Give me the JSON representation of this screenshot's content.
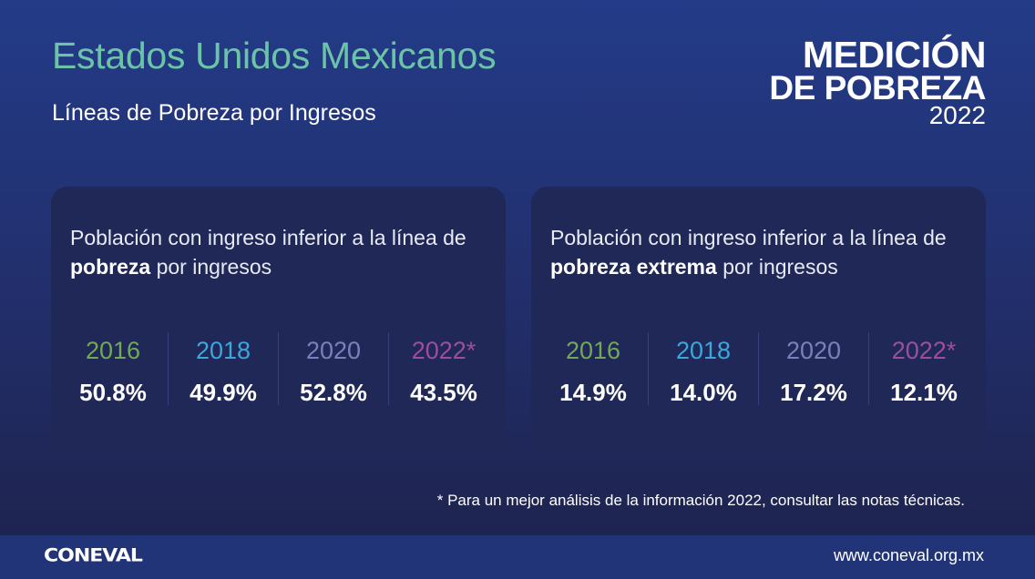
{
  "header": {
    "title": "Estados Unidos Mexicanos",
    "subtitle": "Líneas de Pobreza por Ingresos"
  },
  "logo": {
    "line1": "MEDICIÓN",
    "line2": "DE POBREZA",
    "line3": "2022"
  },
  "colors": {
    "2016": "#71a85a",
    "2018": "#3ba7dd",
    "2020": "#7b80bd",
    "2022": "#9c4ea0",
    "title": "#6cc4a8"
  },
  "cards": [
    {
      "desc_pre": "Población con ingreso inferior a la línea de ",
      "desc_bold": "pobreza",
      "desc_post": " por ingresos",
      "stats": [
        {
          "year": "2016",
          "value": "50.8%"
        },
        {
          "year": "2018",
          "value": "49.9%"
        },
        {
          "year": "2020",
          "value": "52.8%"
        },
        {
          "year": "2022*",
          "value": "43.5%"
        }
      ]
    },
    {
      "desc_pre": "Población con ingreso inferior a la línea de ",
      "desc_bold": "pobreza extrema",
      "desc_post": " por ingresos",
      "stats": [
        {
          "year": "2016",
          "value": "14.9%"
        },
        {
          "year": "2018",
          "value": "14.0%"
        },
        {
          "year": "2020",
          "value": "17.2%"
        },
        {
          "year": "2022*",
          "value": "12.1%"
        }
      ]
    }
  ],
  "note": "* Para un mejor análisis de la información 2022, consultar las notas técnicas.",
  "footer": {
    "logo": "CONEVAL",
    "url": "www.coneval.org.mx"
  }
}
